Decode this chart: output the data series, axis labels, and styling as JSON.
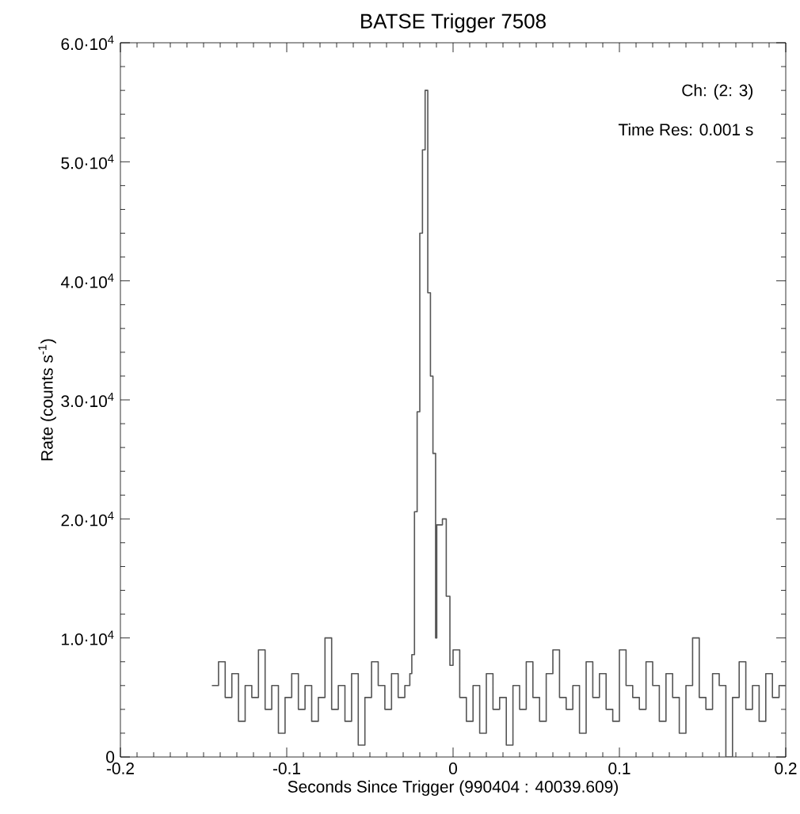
{
  "chart_data": {
    "type": "step",
    "title": "BATSE Trigger 7508",
    "xlabel": "Seconds Since Trigger (990404 : 40039.609)",
    "ylabel": "Rate (counts s$^{-1}$)",
    "annotations": [
      "Ch: (2: 3)",
      "Time Res: 0.001 s"
    ],
    "xlim": [
      -0.2,
      0.2
    ],
    "ylim": [
      0,
      60000
    ],
    "xticks": [
      -0.2,
      -0.1,
      0,
      0.1,
      0.2
    ],
    "yticks": [
      0,
      {
        "value": 10000,
        "label": "1.0·10$^{4}$"
      },
      {
        "value": 20000,
        "label": "2.0·10$^{4}$"
      },
      {
        "value": 30000,
        "label": "3.0·10$^{4}$"
      },
      {
        "value": 40000,
        "label": "4.0·10$^{4}$"
      },
      {
        "value": 50000,
        "label": "5.0·10$^{4}$"
      },
      {
        "value": 60000,
        "label": "6.0·10$^{4}$"
      }
    ],
    "series": [
      {
        "color": "#555555",
        "x": [
          -0.145,
          -0.141,
          -0.137,
          -0.133,
          -0.129,
          -0.125,
          -0.121,
          -0.117,
          -0.113,
          -0.109,
          -0.105,
          -0.101,
          -0.097,
          -0.093,
          -0.089,
          -0.085,
          -0.081,
          -0.077,
          -0.073,
          -0.069,
          -0.065,
          -0.061,
          -0.057,
          -0.053,
          -0.049,
          -0.045,
          -0.041,
          -0.037,
          -0.033,
          -0.029,
          -0.026,
          -0.0248,
          -0.0232,
          -0.0216,
          -0.02,
          -0.0184,
          -0.0168,
          -0.0152,
          -0.0136,
          -0.0121,
          -0.0105,
          -0.0098,
          -0.0064,
          -0.0041,
          -0.0019,
          0,
          0.004,
          0.008,
          0.012,
          0.016,
          0.02,
          0.024,
          0.028,
          0.032,
          0.036,
          0.04,
          0.044,
          0.048,
          0.052,
          0.056,
          0.06,
          0.064,
          0.068,
          0.072,
          0.076,
          0.08,
          0.084,
          0.088,
          0.092,
          0.096,
          0.1,
          0.104,
          0.108,
          0.112,
          0.116,
          0.12,
          0.124,
          0.128,
          0.132,
          0.136,
          0.14,
          0.144,
          0.148,
          0.152,
          0.156,
          0.16,
          0.164,
          0.168,
          0.172,
          0.176,
          0.18,
          0.184,
          0.188,
          0.192,
          0.196,
          0.2
        ],
        "values": [
          6000,
          8000,
          5000,
          7000,
          3000,
          6000,
          5000,
          9000,
          4000,
          6000,
          2000,
          5000,
          7000,
          4000,
          6000,
          3000,
          5000,
          10000,
          4000,
          6000,
          3000,
          7000,
          1000,
          5000,
          8000,
          6000,
          4000,
          7000,
          5000,
          6000,
          7000,
          8600,
          20600,
          29000,
          44000,
          51000,
          56000,
          39000,
          32000,
          25500,
          10000,
          19500,
          20000,
          13500,
          7700,
          9000,
          5000,
          3000,
          6000,
          2000,
          7000,
          4000,
          5000,
          1000,
          6000,
          4000,
          8000,
          5000,
          3000,
          7000,
          9000,
          5000,
          4000,
          6000,
          2000,
          8000,
          5000,
          7000,
          4000,
          3000,
          9000,
          6000,
          5000,
          4000,
          8000,
          6000,
          3000,
          7000,
          5000,
          2000,
          6000,
          10000,
          5000,
          4000,
          7000,
          6000,
          0,
          5000,
          8000,
          4000,
          6000,
          3000,
          7000,
          5000,
          6000,
          6000
        ]
      }
    ]
  }
}
